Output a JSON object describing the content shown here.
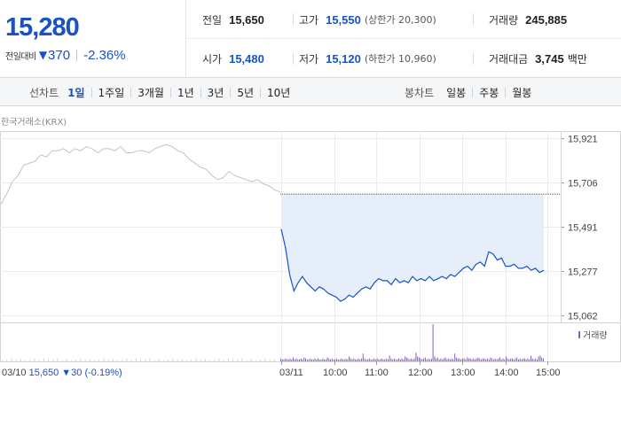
{
  "summary": {
    "current_price": "15,280",
    "change_label": "전일대비",
    "change_direction_icon": "down-triangle",
    "change_value": "370",
    "change_pct": "-2.36%",
    "prev_close_label": "전일",
    "prev_close": "15,650",
    "high_label": "고가",
    "high": "15,550",
    "upper_limit": "(상한가 20,300)",
    "volume_label": "거래량",
    "volume": "245,885",
    "open_label": "시가",
    "open": "15,480",
    "low_label": "저가",
    "low": "15,120",
    "lower_limit": "(하한가 10,960)",
    "turnover_label": "거래대금",
    "turnover": "3,745",
    "turnover_unit": "백만"
  },
  "tabs": {
    "line_chart_label": "선차트",
    "line_periods": [
      "1일",
      "1주일",
      "3개월",
      "1년",
      "3년",
      "5년",
      "10년"
    ],
    "active_period": "1일",
    "candle_chart_label": "봉차트",
    "candle_periods": [
      "일봉",
      "주봉",
      "월봉"
    ]
  },
  "chart": {
    "market_label": "한국거래소(KRX)",
    "volume_legend": "거래량",
    "prev_day_info": {
      "date": "03/10",
      "close": "15,650",
      "change": "▼30",
      "change_pct": "(-0.19%)"
    },
    "colors": {
      "today_line": "#1a52c6",
      "today_fill": "#e6eefa",
      "prev_line": "#c2c2c2",
      "volume_bar": "#8a64b4",
      "prev_close_line": "#555555"
    }
  },
  "chart_data": {
    "type": "line",
    "yticks": [
      "15,921",
      "15,706",
      "15,491",
      "15,277",
      "15,062"
    ],
    "ylim": [
      15062,
      15921
    ],
    "xticks": [
      "03/11",
      "10:00",
      "11:00",
      "12:00",
      "13:00",
      "14:00",
      "15:00"
    ],
    "prev_close": 15650,
    "series": [
      {
        "name": "03/10",
        "values": [
          15600,
          15650,
          15710,
          15740,
          15790,
          15800,
          15810,
          15840,
          15830,
          15860,
          15860,
          15870,
          15850,
          15870,
          15860,
          15880,
          15870,
          15850,
          15870,
          15870,
          15860,
          15880,
          15850,
          15850,
          15860,
          15860,
          15850,
          15870,
          15880,
          15890,
          15880,
          15860,
          15850,
          15820,
          15800,
          15780,
          15770,
          15740,
          15720,
          15730,
          15760,
          15740,
          15730,
          15720,
          15710,
          15720,
          15700,
          15690,
          15670,
          15660
        ]
      },
      {
        "name": "03/11",
        "values": [
          15480,
          15390,
          15260,
          15180,
          15220,
          15250,
          15220,
          15200,
          15180,
          15200,
          15190,
          15170,
          15160,
          15150,
          15130,
          15140,
          15160,
          15150,
          15170,
          15190,
          15200,
          15190,
          15220,
          15240,
          15230,
          15230,
          15210,
          15240,
          15220,
          15230,
          15220,
          15250,
          15230,
          15240,
          15230,
          15250,
          15230,
          15240,
          15250,
          15240,
          15260,
          15250,
          15270,
          15290,
          15300,
          15280,
          15310,
          15320,
          15300,
          15370,
          15360,
          15330,
          15340,
          15300,
          15300,
          15310,
          15290,
          15290,
          15300,
          15280,
          15290,
          15270,
          15280
        ]
      }
    ],
    "volume": [
      3,
      2,
      2,
      3,
      2,
      2,
      3,
      2,
      4,
      2,
      3,
      2,
      2,
      3,
      2,
      4,
      3,
      2,
      2,
      3,
      2,
      2,
      3,
      2,
      3,
      2,
      2,
      3,
      2,
      2,
      4,
      3,
      2,
      3,
      2,
      2,
      3,
      2,
      2,
      3,
      2,
      2,
      3,
      2,
      5,
      3,
      2,
      3,
      2,
      2,
      3,
      2,
      3,
      8,
      3,
      2,
      2,
      3,
      2,
      2,
      3,
      2,
      3,
      2,
      2,
      3,
      2,
      2,
      3,
      2,
      6,
      3,
      2,
      3,
      2,
      2,
      3,
      2,
      3,
      2,
      5,
      4,
      3,
      2,
      3,
      2,
      3,
      9,
      5,
      4,
      3,
      2,
      3,
      4,
      2,
      3,
      2,
      3,
      38,
      5,
      3,
      4,
      2,
      3,
      2,
      3,
      4,
      2,
      3,
      2,
      3,
      2,
      8,
      4,
      3,
      3,
      2,
      3,
      3,
      2,
      4,
      3,
      3,
      2,
      3,
      2,
      3,
      4,
      3,
      2,
      3,
      3,
      2,
      3,
      2,
      4,
      3,
      2,
      3,
      2,
      3,
      4,
      2,
      3,
      2,
      5,
      3,
      2,
      3,
      3,
      2,
      3,
      4,
      2,
      3,
      2,
      3,
      3,
      2,
      3,
      2,
      6,
      3,
      2,
      3,
      2,
      5,
      6,
      4,
      3
    ]
  }
}
